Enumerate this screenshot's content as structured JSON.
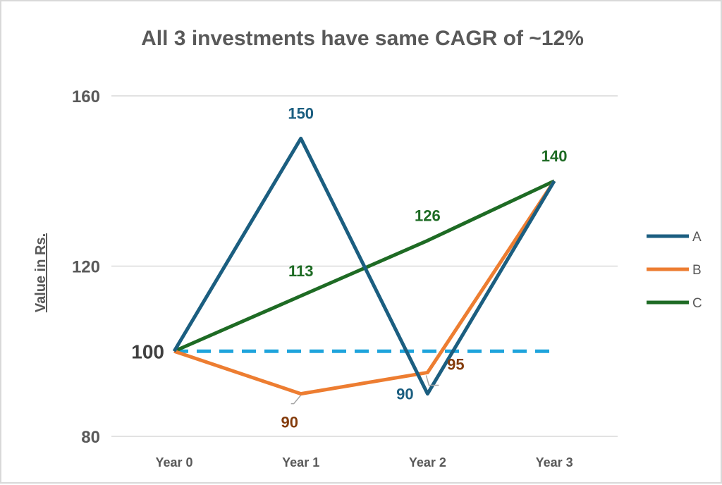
{
  "chart_data": {
    "type": "line",
    "title": "All 3 investments have same CAGR of ~12%",
    "ylabel": "Value in Rs.",
    "xlabel": "",
    "categories": [
      "Year 0",
      "Year 1",
      "Year 2",
      "Year 3"
    ],
    "ylim": [
      80,
      160
    ],
    "yticks": [
      80,
      120,
      160
    ],
    "ytick_labels": [
      "80",
      "120",
      "160"
    ],
    "grid": true,
    "legend_placement": "right",
    "series": [
      {
        "name": "A",
        "values": [
          100,
          150,
          90,
          140
        ],
        "color": "#1b5e80",
        "label_color": "#1b5e80",
        "labels": [
          null,
          "150",
          "90",
          null
        ]
      },
      {
        "name": "B",
        "values": [
          100,
          90,
          95,
          140
        ],
        "color": "#ed7d31",
        "label_color": "#843c0c",
        "labels": [
          null,
          "90",
          "95",
          null
        ]
      },
      {
        "name": "C",
        "values": [
          100,
          113,
          126,
          140
        ],
        "color": "#1e6b24",
        "label_color": "#1e6b24",
        "labels": [
          "100",
          "113",
          "126",
          "140"
        ]
      }
    ],
    "reference_line": {
      "value": 100,
      "style": "dashed",
      "color": "#1ea4dc"
    },
    "start_label": "100"
  }
}
